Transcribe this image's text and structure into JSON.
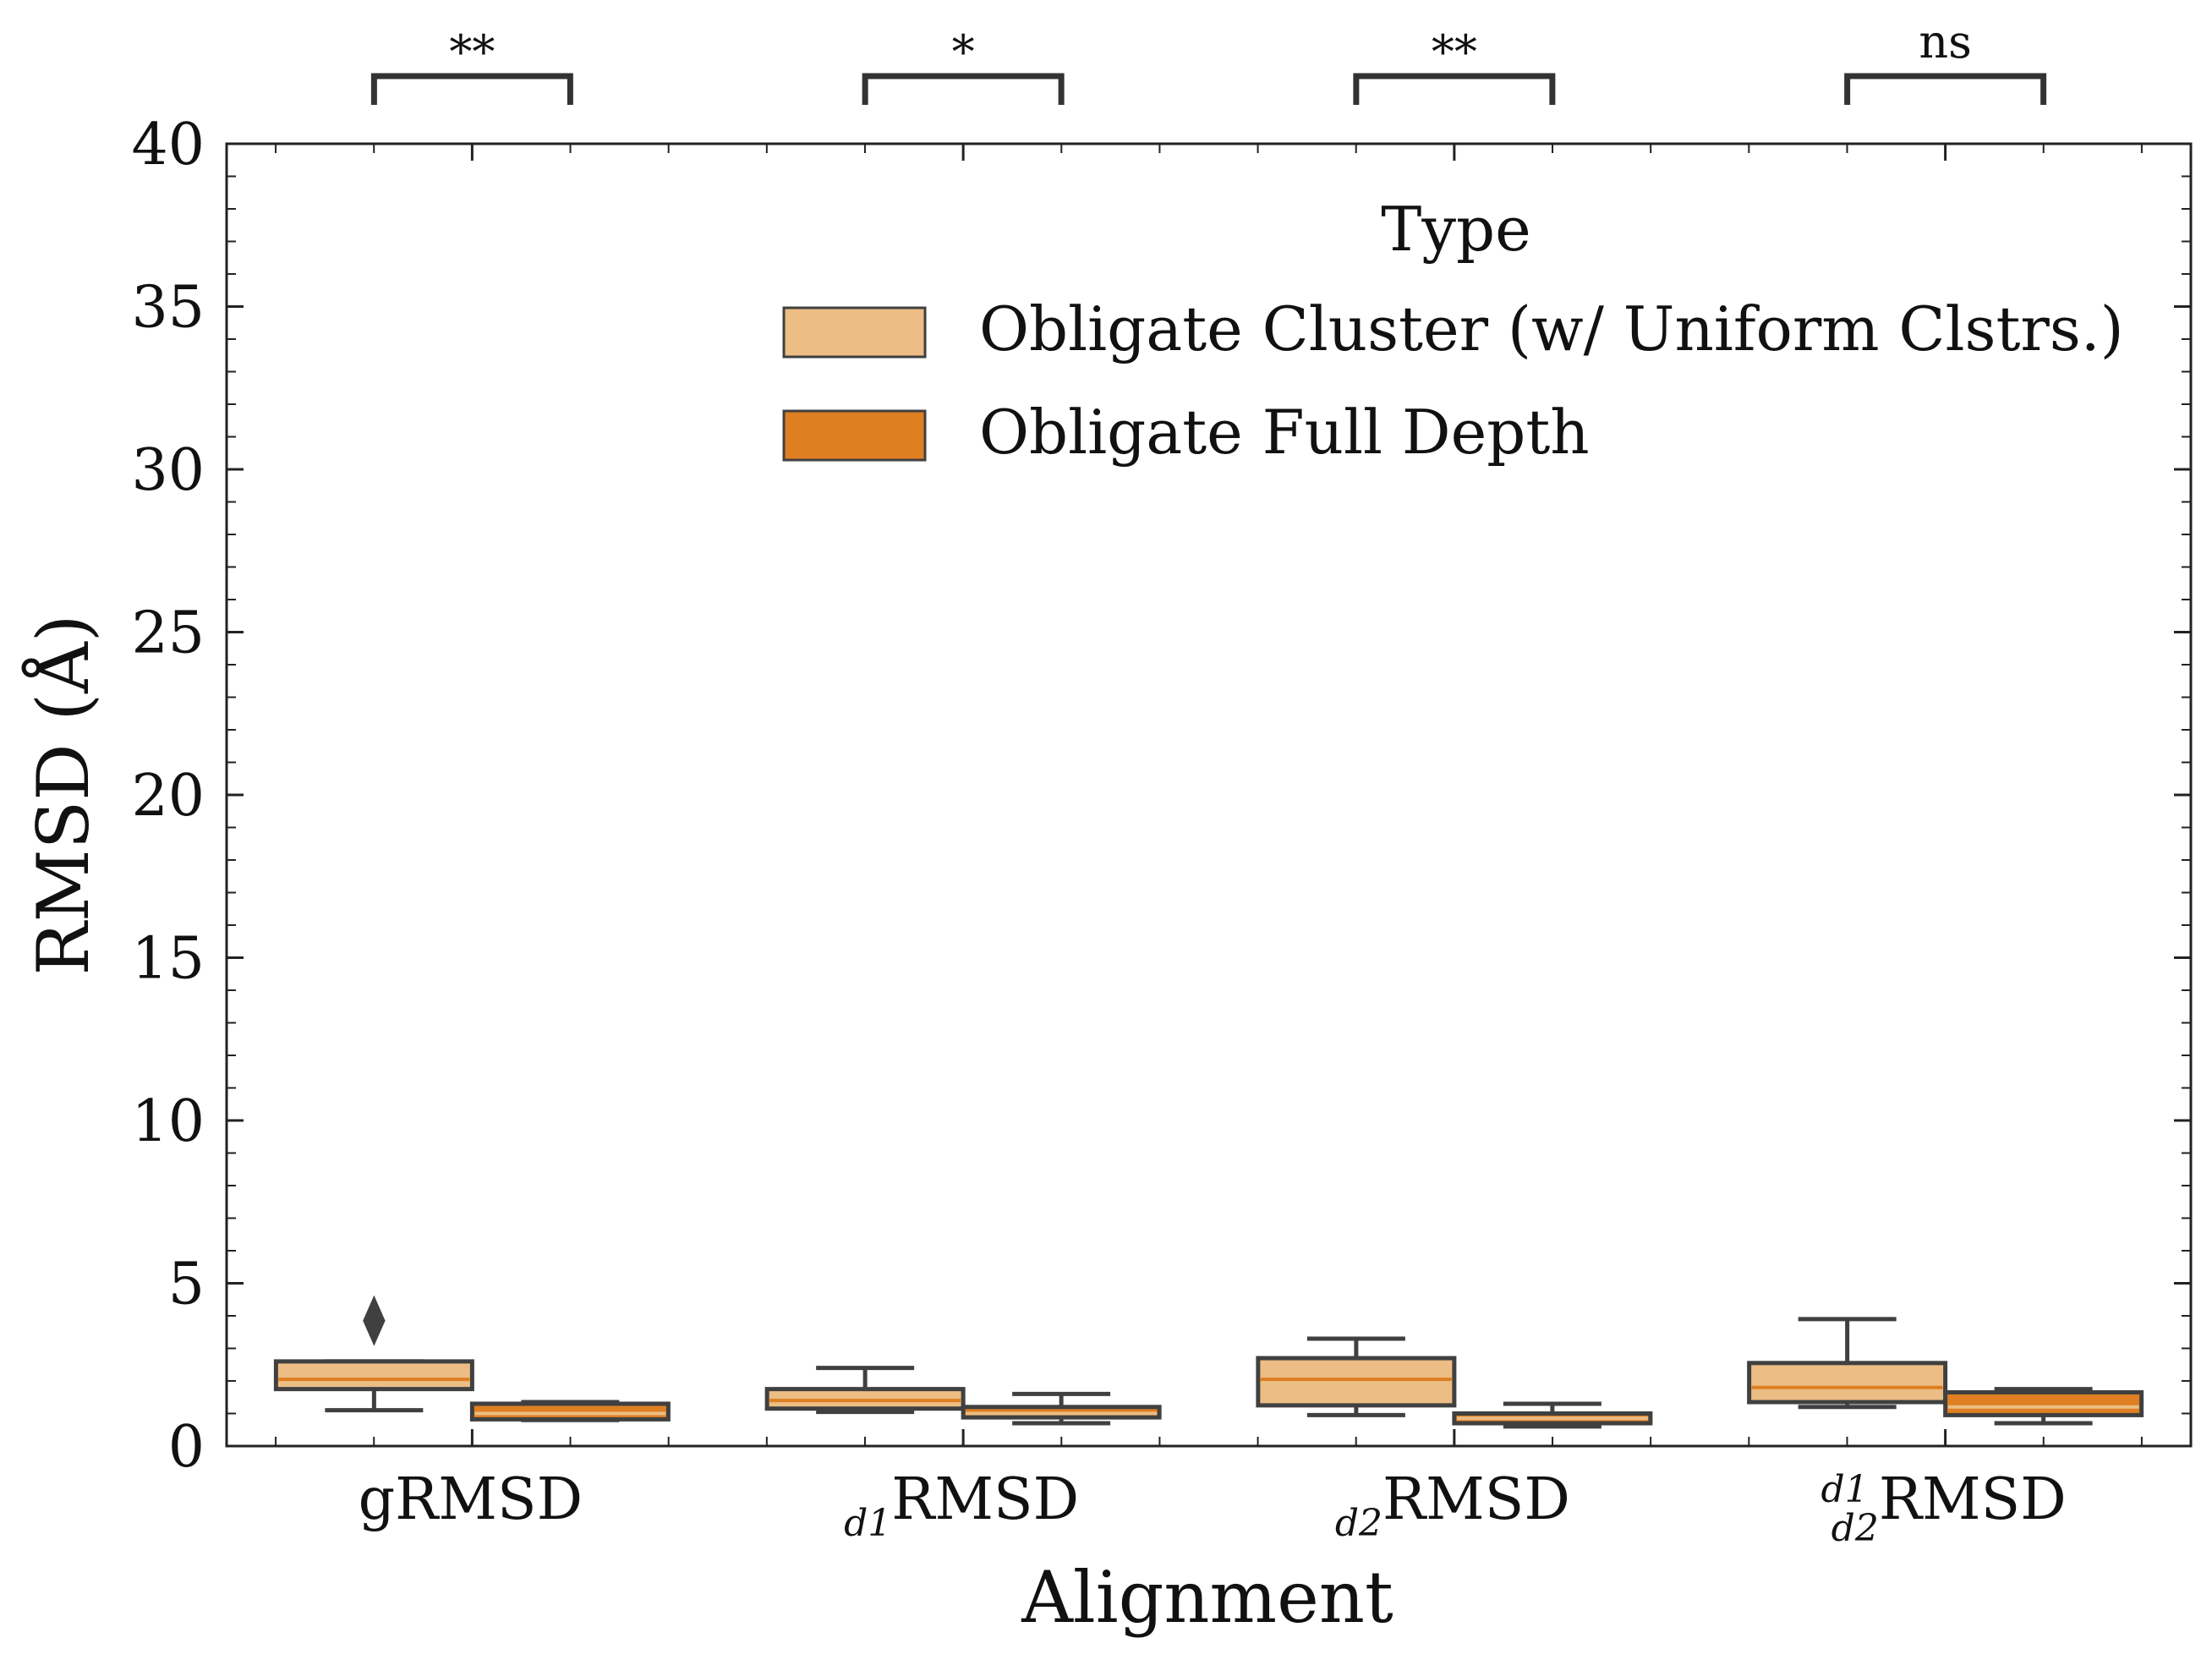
{
  "chart_data": {
    "type": "box",
    "title": "",
    "xlabel": "Alignment",
    "ylabel": "RMSD (Å)",
    "ylim": [
      0,
      40
    ],
    "yticks": [
      0,
      5,
      10,
      15,
      20,
      25,
      30,
      35,
      40
    ],
    "ytick_labels": [
      "0",
      "5",
      "10",
      "15",
      "20",
      "25",
      "30",
      "35",
      "40"
    ],
    "grid": false,
    "categories": [
      {
        "base": "gRMSD",
        "sub": "",
        "sup": ""
      },
      {
        "base": "RMSD",
        "sub": "d1",
        "sup": ""
      },
      {
        "base": "RMSD",
        "sub": "d2",
        "sup": ""
      },
      {
        "base": "RMSD",
        "sub": "d2",
        "sup": "d1"
      }
    ],
    "legend": {
      "title": "Type",
      "position": "top-right",
      "entries": [
        {
          "label": "Obligate Cluster (w/ Uniform Clstrs.)",
          "color": "#ecbd84"
        },
        {
          "label": "Obligate Full Depth",
          "color": "#df7f22"
        }
      ]
    },
    "series": [
      {
        "name": "Obligate Cluster (w/ Uniform Clstrs.)",
        "color": "#ecbd84",
        "median_color": "#df7f22",
        "boxes": [
          {
            "whislo": 1.1,
            "q1": 1.75,
            "med": 2.05,
            "q3": 2.6,
            "whishi": 2.6,
            "fliers": [
              3.85
            ]
          },
          {
            "whislo": 1.05,
            "q1": 1.15,
            "med": 1.4,
            "q3": 1.75,
            "whishi": 2.4,
            "fliers": []
          },
          {
            "whislo": 0.95,
            "q1": 1.25,
            "med": 2.05,
            "q3": 2.7,
            "whishi": 3.3,
            "fliers": []
          },
          {
            "whislo": 1.2,
            "q1": 1.35,
            "med": 1.8,
            "q3": 2.55,
            "whishi": 3.9,
            "fliers": []
          }
        ]
      },
      {
        "name": "Obligate Full Depth",
        "color": "#df7f22",
        "median_color": "#ecbd84",
        "boxes": [
          {
            "whislo": 0.8,
            "q1": 0.82,
            "med": 1.0,
            "q3": 1.3,
            "whishi": 1.35,
            "fliers": []
          },
          {
            "whislo": 0.7,
            "q1": 0.88,
            "med": 1.0,
            "q3": 1.2,
            "whishi": 1.6,
            "fliers": []
          },
          {
            "whislo": 0.6,
            "q1": 0.7,
            "med": 0.85,
            "q3": 1.0,
            "whishi": 1.3,
            "fliers": []
          },
          {
            "whislo": 0.7,
            "q1": 0.95,
            "med": 1.2,
            "q3": 1.65,
            "whishi": 1.75,
            "fliers": []
          }
        ]
      }
    ],
    "significance": [
      "**",
      "*",
      "**",
      "ns"
    ]
  }
}
